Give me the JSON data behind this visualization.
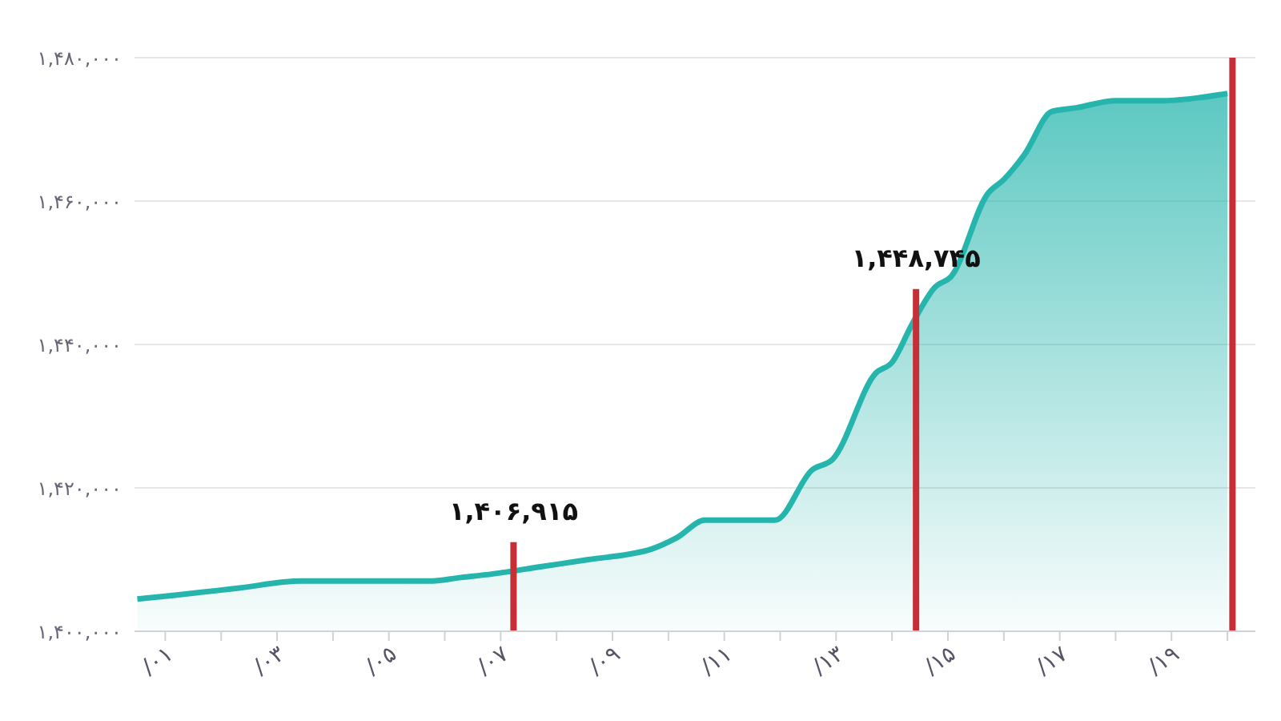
{
  "chart_data": {
    "type": "area",
    "x": [
      0.5,
      1.14,
      2.29,
      3.43,
      4,
      5.71,
      6.29,
      6.86,
      7.71,
      8.57,
      9.71,
      10.14,
      10.66,
      11.91,
      12.57,
      12.94,
      13.71,
      14,
      14.37,
      14.77,
      15.06,
      15.71,
      16,
      16.37,
      16.86,
      17.29,
      18,
      18.86,
      19.57,
      20
    ],
    "series": [
      {
        "color": "#26b5ad",
        "values": [
          1404500,
          1405000,
          1406000,
          1407000,
          1407000,
          1407000,
          1407500,
          1408000,
          1409000,
          1410000,
          1411500,
          1413000,
          1415500,
          1415500,
          1422500,
          1424000,
          1436000,
          1437500,
          1443000,
          1448000,
          1449500,
          1461000,
          1463000,
          1466500,
          1472500,
          1473000,
          1474000,
          1474000,
          1474500,
          1475000
        ]
      }
    ],
    "xlim": [
      0.45,
      20.5
    ],
    "xticks": [
      {
        "value": 1,
        "label": "/۰۱"
      },
      {
        "value": 2,
        "label": null
      },
      {
        "value": 3,
        "label": "/۰۳"
      },
      {
        "value": 4,
        "label": null
      },
      {
        "value": 5,
        "label": "/۰۵"
      },
      {
        "value": 6,
        "label": null
      },
      {
        "value": 7,
        "label": "/۰۷"
      },
      {
        "value": 8,
        "label": null
      },
      {
        "value": 9,
        "label": "/۰۹"
      },
      {
        "value": 10,
        "label": null
      },
      {
        "value": 11,
        "label": "/۱۱"
      },
      {
        "value": 12,
        "label": null
      },
      {
        "value": 13,
        "label": "/۱۳"
      },
      {
        "value": 14,
        "label": null
      },
      {
        "value": 15,
        "label": "/۱۵"
      },
      {
        "value": 16,
        "label": null
      },
      {
        "value": 17,
        "label": "/۱۷"
      },
      {
        "value": 18,
        "label": null
      },
      {
        "value": 19,
        "label": "/۱۹"
      },
      {
        "value": 20,
        "label": null
      }
    ],
    "ylim": [
      1400000,
      1480000
    ],
    "yticks": [
      {
        "value": 1400000,
        "label": "۱,۴۰۰,۰۰۰"
      },
      {
        "value": 1420000,
        "label": "۱,۴۲۰,۰۰۰"
      },
      {
        "value": 1440000,
        "label": "۱,۴۴۰,۰۰۰"
      },
      {
        "value": 1460000,
        "label": "۱,۴۶۰,۰۰۰"
      },
      {
        "value": 1480000,
        "label": "۱,۴۸۰,۰۰۰"
      }
    ],
    "grid": "y",
    "ref_lines": [
      {
        "axis": "x",
        "value": 7.23,
        "label": "۱,۴۰۶,۹۱۵",
        "color": "#c62f37"
      },
      {
        "axis": "x",
        "value": 14.43,
        "label": "۱,۴۴۸,۷۴۵",
        "color": "#c62f37"
      },
      {
        "axis": "x",
        "value": 20.09,
        "color": "#c62f37"
      }
    ]
  }
}
